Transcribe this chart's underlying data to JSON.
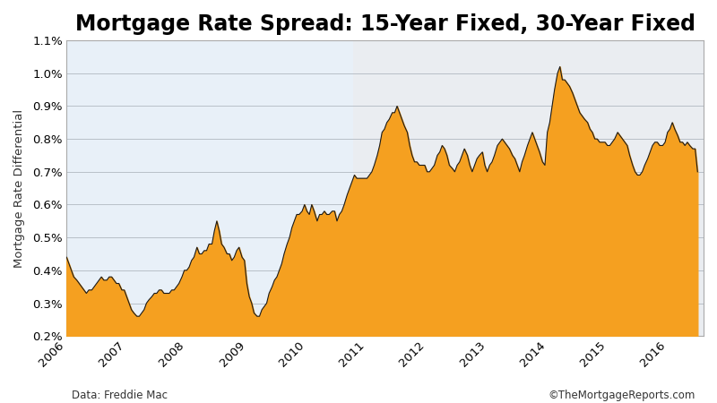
{
  "title": "Mortgage Rate Spread: 15-Year Fixed, 30-Year Fixed",
  "ylabel": "Mortgage Rate Differential",
  "xlabel_note": "Data: Freddie Mac",
  "copyright": "©TheMortgageReports.com",
  "fill_color": "#F5A020",
  "line_color": "#1a1a1a",
  "background_color": "#e8f0f8",
  "ylim": [
    0.002,
    0.011
  ],
  "yticks": [
    0.002,
    0.003,
    0.004,
    0.005,
    0.006,
    0.007,
    0.008,
    0.009,
    0.01,
    0.011
  ],
  "ytick_labels": [
    "0.2%",
    "0.3%",
    "0.4%",
    "0.5%",
    "0.6%",
    "0.7%",
    "0.8%",
    "0.9%",
    "1.0%",
    "1.1%"
  ],
  "x_years": [
    2006,
    2007,
    2008,
    2009,
    2010,
    2011,
    2012,
    2013,
    2014,
    2015,
    2016
  ],
  "data_x": [
    2006.0,
    2006.04,
    2006.08,
    2006.12,
    2006.17,
    2006.21,
    2006.25,
    2006.29,
    2006.33,
    2006.37,
    2006.42,
    2006.46,
    2006.5,
    2006.54,
    2006.58,
    2006.62,
    2006.67,
    2006.71,
    2006.75,
    2006.79,
    2006.83,
    2006.87,
    2006.92,
    2006.96,
    2007.0,
    2007.04,
    2007.08,
    2007.12,
    2007.17,
    2007.21,
    2007.25,
    2007.29,
    2007.33,
    2007.37,
    2007.42,
    2007.46,
    2007.5,
    2007.54,
    2007.58,
    2007.62,
    2007.67,
    2007.71,
    2007.75,
    2007.79,
    2007.83,
    2007.87,
    2007.92,
    2007.96,
    2008.0,
    2008.04,
    2008.08,
    2008.12,
    2008.17,
    2008.21,
    2008.25,
    2008.29,
    2008.33,
    2008.37,
    2008.42,
    2008.46,
    2008.5,
    2008.54,
    2008.58,
    2008.62,
    2008.67,
    2008.71,
    2008.75,
    2008.79,
    2008.83,
    2008.87,
    2008.92,
    2008.96,
    2009.0,
    2009.04,
    2009.08,
    2009.12,
    2009.17,
    2009.21,
    2009.25,
    2009.29,
    2009.33,
    2009.37,
    2009.42,
    2009.46,
    2009.5,
    2009.54,
    2009.58,
    2009.62,
    2009.67,
    2009.71,
    2009.75,
    2009.79,
    2009.83,
    2009.87,
    2009.92,
    2009.96,
    2010.0,
    2010.04,
    2010.08,
    2010.12,
    2010.17,
    2010.21,
    2010.25,
    2010.29,
    2010.33,
    2010.37,
    2010.42,
    2010.46,
    2010.5,
    2010.54,
    2010.58,
    2010.62,
    2010.67,
    2010.71,
    2010.75,
    2010.79,
    2010.83,
    2010.87,
    2010.92,
    2010.96,
    2011.0,
    2011.04,
    2011.08,
    2011.12,
    2011.17,
    2011.21,
    2011.25,
    2011.29,
    2011.33,
    2011.37,
    2011.42,
    2011.46,
    2011.5,
    2011.54,
    2011.58,
    2011.62,
    2011.67,
    2011.71,
    2011.75,
    2011.79,
    2011.83,
    2011.87,
    2011.92,
    2011.96,
    2012.0,
    2012.04,
    2012.08,
    2012.12,
    2012.17,
    2012.21,
    2012.25,
    2012.29,
    2012.33,
    2012.37,
    2012.42,
    2012.46,
    2012.5,
    2012.54,
    2012.58,
    2012.62,
    2012.67,
    2012.71,
    2012.75,
    2012.79,
    2012.83,
    2012.87,
    2012.92,
    2012.96,
    2013.0,
    2013.04,
    2013.08,
    2013.12,
    2013.17,
    2013.21,
    2013.25,
    2013.29,
    2013.33,
    2013.37,
    2013.42,
    2013.46,
    2013.5,
    2013.54,
    2013.58,
    2013.62,
    2013.67,
    2013.71,
    2013.75,
    2013.79,
    2013.83,
    2013.87,
    2013.92,
    2013.96,
    2014.0,
    2014.04,
    2014.08,
    2014.12,
    2014.17,
    2014.21,
    2014.25,
    2014.29,
    2014.33,
    2014.37,
    2014.42,
    2014.46,
    2014.5,
    2014.54,
    2014.58,
    2014.62,
    2014.67,
    2014.71,
    2014.75,
    2014.79,
    2014.83,
    2014.87,
    2014.92,
    2014.96,
    2015.0,
    2015.04,
    2015.08,
    2015.12,
    2015.17,
    2015.21,
    2015.25,
    2015.29,
    2015.33,
    2015.37,
    2015.42,
    2015.46,
    2015.5,
    2015.54,
    2015.58,
    2015.62,
    2015.67,
    2015.71,
    2015.75,
    2015.79,
    2015.83,
    2015.87,
    2015.92,
    2015.96,
    2016.0,
    2016.04,
    2016.08,
    2016.12,
    2016.17,
    2016.21,
    2016.25,
    2016.29,
    2016.33,
    2016.37,
    2016.42,
    2016.46,
    2016.5
  ],
  "data_y": [
    0.0044,
    0.0042,
    0.004,
    0.0038,
    0.0037,
    0.0036,
    0.0035,
    0.0034,
    0.0033,
    0.0034,
    0.0034,
    0.0035,
    0.0036,
    0.0037,
    0.0038,
    0.0037,
    0.0037,
    0.0038,
    0.0038,
    0.0037,
    0.0036,
    0.0036,
    0.0034,
    0.0034,
    0.0032,
    0.003,
    0.0028,
    0.0027,
    0.0026,
    0.0026,
    0.0027,
    0.0028,
    0.003,
    0.0031,
    0.0032,
    0.0033,
    0.0033,
    0.0034,
    0.0034,
    0.0033,
    0.0033,
    0.0033,
    0.0034,
    0.0034,
    0.0035,
    0.0036,
    0.0038,
    0.004,
    0.004,
    0.0041,
    0.0043,
    0.0044,
    0.0047,
    0.0045,
    0.0045,
    0.0046,
    0.0046,
    0.0048,
    0.0048,
    0.0052,
    0.0055,
    0.0052,
    0.0048,
    0.0047,
    0.0045,
    0.0045,
    0.0043,
    0.0044,
    0.0046,
    0.0047,
    0.0044,
    0.0043,
    0.0036,
    0.0032,
    0.003,
    0.0027,
    0.0026,
    0.0026,
    0.0028,
    0.0029,
    0.003,
    0.0033,
    0.0035,
    0.0037,
    0.0038,
    0.004,
    0.0042,
    0.0045,
    0.0048,
    0.005,
    0.0053,
    0.0055,
    0.0057,
    0.0057,
    0.0058,
    0.006,
    0.0058,
    0.0057,
    0.006,
    0.0058,
    0.0055,
    0.0057,
    0.0057,
    0.0058,
    0.0057,
    0.0057,
    0.0058,
    0.0058,
    0.0055,
    0.0057,
    0.0058,
    0.006,
    0.0063,
    0.0065,
    0.0067,
    0.0069,
    0.0068,
    0.0068,
    0.0068,
    0.0068,
    0.0068,
    0.0069,
    0.007,
    0.0072,
    0.0075,
    0.0078,
    0.0082,
    0.0083,
    0.0085,
    0.0086,
    0.0088,
    0.0088,
    0.009,
    0.0088,
    0.0086,
    0.0084,
    0.0082,
    0.0078,
    0.0075,
    0.0073,
    0.0073,
    0.0072,
    0.0072,
    0.0072,
    0.007,
    0.007,
    0.0071,
    0.0072,
    0.0075,
    0.0076,
    0.0078,
    0.0077,
    0.0075,
    0.0072,
    0.0071,
    0.007,
    0.0072,
    0.0073,
    0.0075,
    0.0077,
    0.0075,
    0.0072,
    0.007,
    0.0072,
    0.0074,
    0.0075,
    0.0076,
    0.0072,
    0.007,
    0.0072,
    0.0073,
    0.0075,
    0.0078,
    0.0079,
    0.008,
    0.0079,
    0.0078,
    0.0077,
    0.0075,
    0.0074,
    0.0072,
    0.007,
    0.0073,
    0.0075,
    0.0078,
    0.008,
    0.0082,
    0.008,
    0.0078,
    0.0076,
    0.0073,
    0.0072,
    0.0082,
    0.0085,
    0.009,
    0.0095,
    0.01,
    0.0102,
    0.0098,
    0.0098,
    0.0097,
    0.0096,
    0.0094,
    0.0092,
    0.009,
    0.0088,
    0.0087,
    0.0086,
    0.0085,
    0.0083,
    0.0082,
    0.008,
    0.008,
    0.0079,
    0.0079,
    0.0079,
    0.0078,
    0.0078,
    0.0079,
    0.008,
    0.0082,
    0.0081,
    0.008,
    0.0079,
    0.0078,
    0.0075,
    0.0072,
    0.007,
    0.0069,
    0.0069,
    0.007,
    0.0072,
    0.0074,
    0.0076,
    0.0078,
    0.0079,
    0.0079,
    0.0078,
    0.0078,
    0.0079,
    0.0082,
    0.0083,
    0.0085,
    0.0083,
    0.0081,
    0.0079,
    0.0079,
    0.0078,
    0.0079,
    0.0078,
    0.0077,
    0.0077,
    0.007
  ]
}
